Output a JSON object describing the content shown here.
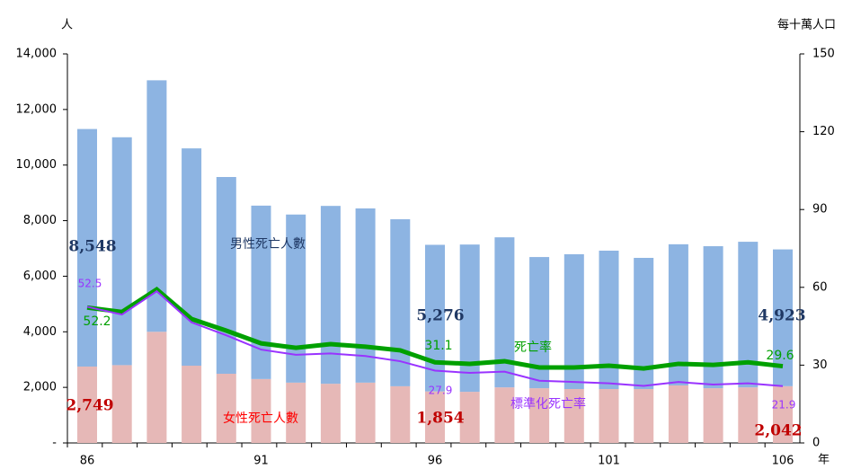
{
  "chart_data": {
    "type": "bar-line",
    "categories": [
      "86",
      null,
      null,
      null,
      null,
      "91",
      null,
      null,
      null,
      null,
      "96",
      null,
      null,
      null,
      null,
      "101",
      null,
      null,
      null,
      null,
      "106"
    ],
    "ylabel": "人",
    "y2label": "每十萬人口",
    "xlabel": "年",
    "ylim": [
      0,
      14000
    ],
    "yticks": [
      {
        "value": 0,
        "label": "-"
      },
      {
        "value": 2000,
        "label": "2,000"
      },
      {
        "value": 4000,
        "label": "4,000"
      },
      {
        "value": 6000,
        "label": "6,000"
      },
      {
        "value": 8000,
        "label": "8,000"
      },
      {
        "value": 10000,
        "label": "10,000"
      },
      {
        "value": 12000,
        "label": "12,000"
      },
      {
        "value": 14000,
        "label": "14,000"
      }
    ],
    "y2lim": [
      0,
      150
    ],
    "y2ticks": [
      0,
      30,
      60,
      90,
      120,
      150
    ],
    "series": [
      {
        "name": "女性死亡人數",
        "kind": "bar",
        "color": "#e6b8b7",
        "label_color": "#c00000",
        "values": [
          2749,
          2800,
          4000,
          2780,
          2490,
          2300,
          2170,
          2130,
          2170,
          2040,
          1854,
          1840,
          2000,
          1970,
          1940,
          1940,
          1940,
          2070,
          1970,
          2000,
          2042
        ],
        "value_labels": [
          "2,749",
          null,
          null,
          null,
          null,
          null,
          null,
          null,
          null,
          null,
          "1,854",
          null,
          null,
          null,
          null,
          null,
          null,
          null,
          null,
          null,
          "2,042"
        ]
      },
      {
        "name": "男性死亡人數",
        "kind": "bar",
        "color": "#8db4e2",
        "label_color": "#1f3864",
        "values": [
          8548,
          8200,
          9050,
          7820,
          7080,
          6240,
          6050,
          6400,
          6270,
          6010,
          5276,
          5300,
          5400,
          4720,
          4850,
          4980,
          4720,
          5080,
          5110,
          5240,
          4923
        ],
        "value_labels": [
          "8,548",
          null,
          null,
          null,
          null,
          null,
          null,
          null,
          null,
          null,
          "5,276",
          null,
          null,
          null,
          null,
          null,
          null,
          null,
          null,
          null,
          "4,923"
        ]
      },
      {
        "name": "死亡率",
        "kind": "line",
        "axis": "y2",
        "color": "#00a000",
        "values": [
          52.2,
          50.5,
          59.2,
          47.8,
          43.3,
          38.4,
          36.7,
          38.1,
          37.1,
          35.7,
          31.1,
          30.5,
          31.5,
          29.1,
          29.1,
          29.8,
          28.7,
          30.5,
          30.1,
          31.1,
          29.6
        ]
      },
      {
        "name": "標準化死亡率",
        "kind": "line",
        "axis": "y2",
        "color": "#9933ff",
        "values": [
          52.5,
          49.5,
          58.5,
          46.5,
          41.5,
          36,
          34,
          34.5,
          33.5,
          31.5,
          27.9,
          27,
          27.5,
          24,
          23.5,
          23,
          22,
          23.5,
          22.5,
          23,
          21.9
        ]
      }
    ]
  }
}
